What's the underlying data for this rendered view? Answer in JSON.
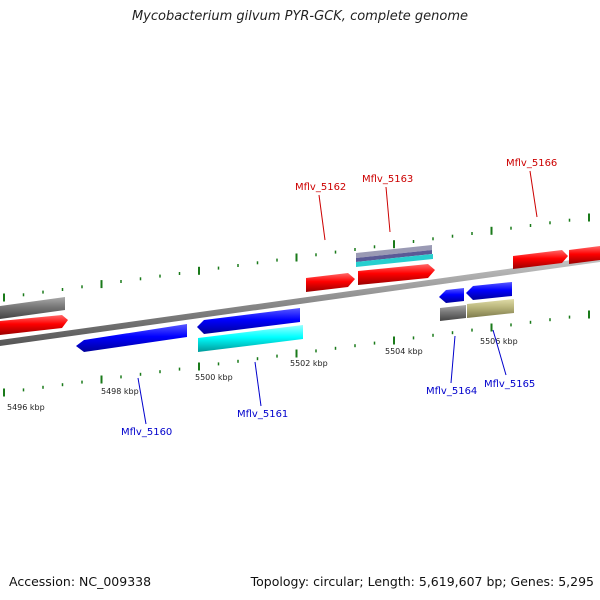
{
  "title": "Mycobacterium gilvum PYR-GCK, complete genome",
  "footer": {
    "accession": "Accession: NC_009338",
    "topology": "Topology: circular; Length: 5,619,607 bp; Genes: 5,295"
  },
  "colors": {
    "forward_gene": "#ff0000",
    "reverse_gene": "#0000ff",
    "rna_gene": "#00e5e5",
    "other_feature": "#7a7a7a",
    "pseudo_feature": "#b8b47a",
    "forward_label": "#cc0000",
    "reverse_label": "#0000cc",
    "tick": "#1a7a1a",
    "backbone": "#8c8c8c"
  },
  "scale_ticks": [
    "5496 kbp",
    "5498 kbp",
    "5500 kbp",
    "5502 kbp",
    "5504 kbp",
    "5506 kbp"
  ],
  "gene_labels": [
    {
      "text": "Mflv_5160",
      "strand": "reverse"
    },
    {
      "text": "Mflv_5161",
      "strand": "reverse"
    },
    {
      "text": "Mflv_5162",
      "strand": "forward"
    },
    {
      "text": "Mflv_5163",
      "strand": "forward"
    },
    {
      "text": "Mflv_5164",
      "strand": "reverse"
    },
    {
      "text": "Mflv_5165",
      "strand": "reverse"
    },
    {
      "text": "Mflv_5166",
      "strand": "forward"
    }
  ]
}
